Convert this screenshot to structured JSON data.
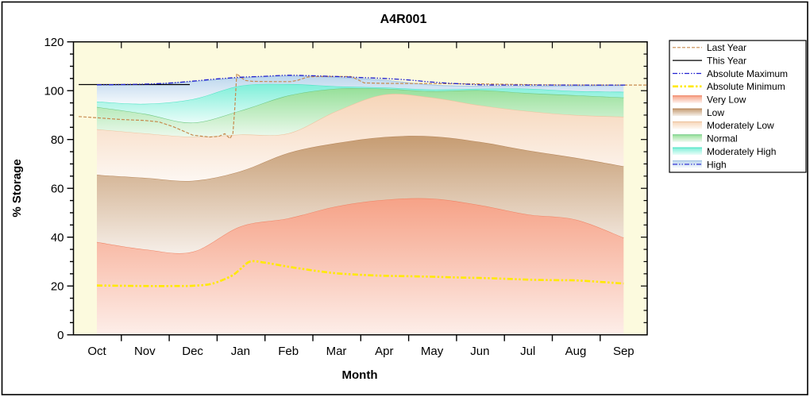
{
  "title": "A4R001",
  "axes": {
    "x": {
      "label": "Month",
      "categories": [
        "Oct",
        "Nov",
        "Dec",
        "Jan",
        "Feb",
        "Mar",
        "Apr",
        "May",
        "Jun",
        "Jul",
        "Aug",
        "Sep"
      ]
    },
    "y": {
      "label": "% Storage",
      "min": 0,
      "max": 120,
      "major_step": 20,
      "minor_step": 5,
      "ticks": [
        "0",
        "20",
        "40",
        "60",
        "80",
        "100",
        "120"
      ]
    }
  },
  "colors": {
    "figure_bg": "#FFFFFF",
    "border": "#000000",
    "plot_bg": "#FCFADE"
  },
  "legend": {
    "items": [
      {
        "label": "Last Year",
        "kind": "line",
        "color": "#C68A4E",
        "dash": "4 2",
        "width": 1.2
      },
      {
        "label": "This Year",
        "kind": "line",
        "color": "#000000",
        "dash": "",
        "width": 1.3
      },
      {
        "label": "Absolute Maximum",
        "kind": "line",
        "color": "#2020D0",
        "dash": "6 2 1.5 2 1.5 2",
        "width": 1.3
      },
      {
        "label": "Absolute Minimum",
        "kind": "line",
        "color": "#FFE900",
        "dash": "7 2.5 2.5 2.5 2.5 2.5",
        "width": 2.6
      },
      {
        "label": "Very Low",
        "kind": "band",
        "fill": "#F6A287",
        "stroke": "#EF8465"
      },
      {
        "label": "Low",
        "kind": "band",
        "fill": "#C69C72",
        "stroke": "#B8885C"
      },
      {
        "label": "Moderately Low",
        "kind": "band",
        "fill": "#F6D5B8",
        "stroke": "#EDC39E"
      },
      {
        "label": "Normal",
        "kind": "band",
        "fill": "#97E09A",
        "stroke": "#6FC983"
      },
      {
        "label": "Moderately High",
        "kind": "band",
        "fill": "#7EEFD9",
        "stroke": "#4FE3C4"
      },
      {
        "label": "High",
        "kind": "band-line",
        "fill": "#BCD6ED",
        "stroke": "#A8C6E4",
        "color": "#2020D0",
        "dash": "6 2 1.5 2 1.5 2",
        "width": 1.2
      }
    ]
  },
  "chart_data": {
    "type": "area",
    "title": "A4R001",
    "xlabel": "Month",
    "ylabel": "% Storage",
    "ylim": [
      0,
      120
    ],
    "grid": false,
    "legend_position": "outside-right",
    "categories": [
      "Oct",
      "Nov",
      "Dec",
      "Jan",
      "Feb",
      "Mar",
      "Apr",
      "May",
      "Jun",
      "Jul",
      "Aug",
      "Sep"
    ],
    "bands_note": "Stacked zone boundaries in % storage; each band fills from previous boundary (0 for first) up to its 'top' values at month centers Oct..Sep",
    "bands": [
      {
        "name": "Very Low",
        "fill": "#F6A287",
        "stroke": "#EF8465",
        "top": [
          38.0,
          35.0,
          34.0,
          44.4,
          47.7,
          52.6,
          55.3,
          55.8,
          53.1,
          49.3,
          47.2,
          39.8
        ]
      },
      {
        "name": "Low",
        "fill": "#C69C72",
        "stroke": "#B8885C",
        "top": [
          65.5,
          64.3,
          63.1,
          67.0,
          74.5,
          78.5,
          81.0,
          81.3,
          79.0,
          75.5,
          72.5,
          69.0
        ]
      },
      {
        "name": "Moderately Low",
        "fill": "#F6D5B8",
        "stroke": "#EDC39E",
        "top": [
          84.2,
          82.5,
          81.1,
          82.0,
          82.5,
          91.6,
          98.4,
          97.2,
          94.0,
          91.6,
          90.0,
          89.3
        ]
      },
      {
        "name": "Normal",
        "fill": "#97E09A",
        "stroke": "#6FC983",
        "top": [
          93.3,
          90.5,
          86.9,
          91.8,
          98.0,
          100.8,
          100.8,
          99.8,
          100.2,
          99.0,
          98.1,
          97.2
        ]
      },
      {
        "name": "Moderately High",
        "fill": "#7EEFD9",
        "stroke": "#4FE3C4",
        "top": [
          95.5,
          94.6,
          96.5,
          102.0,
          102.7,
          101.8,
          101.3,
          100.5,
          100.8,
          100.8,
          99.8,
          99.5
        ]
      },
      {
        "name": "High",
        "fill": "#BCD6ED",
        "stroke": "#A8C6E4",
        "top": [
          102.3,
          102.5,
          103.7,
          105.2,
          106.0,
          105.4,
          104.3,
          102.3,
          101.8,
          101.8,
          101.9,
          102.1
        ]
      }
    ],
    "lines_note": "points are [month_index, percent]; Oct=0 .. Sep=11; negative/fractional x = plot edge overhang",
    "lines": [
      {
        "name": "Absolute Minimum",
        "color": "#FFE900",
        "width": 2.6,
        "dash": "7 2.5 2.5 2.5 2.5 2.5",
        "smooth": true,
        "points": [
          [
            0,
            20.2
          ],
          [
            0.5,
            20.1
          ],
          [
            1,
            20.0
          ],
          [
            1.6,
            20.0
          ],
          [
            2,
            20.1
          ],
          [
            2.4,
            20.9
          ],
          [
            2.8,
            24.0
          ],
          [
            3,
            27.0
          ],
          [
            3.2,
            30.0
          ],
          [
            3.5,
            29.6
          ],
          [
            4,
            27.9
          ],
          [
            4.5,
            26.4
          ],
          [
            5,
            25.2
          ],
          [
            5.5,
            24.6
          ],
          [
            6,
            24.2
          ],
          [
            6.5,
            24.0
          ],
          [
            7,
            23.8
          ],
          [
            7.5,
            23.5
          ],
          [
            8,
            23.3
          ],
          [
            8.5,
            23.0
          ],
          [
            9,
            22.6
          ],
          [
            9.5,
            22.4
          ],
          [
            10,
            22.3
          ],
          [
            10.5,
            21.7
          ],
          [
            11,
            21.0
          ]
        ]
      },
      {
        "name": "Last Year",
        "color": "#C68A4E",
        "width": 1.2,
        "dash": "4 2",
        "smooth": false,
        "points": [
          [
            -0.38,
            89.4
          ],
          [
            0,
            88.9
          ],
          [
            0.5,
            88.2
          ],
          [
            1,
            87.8
          ],
          [
            1.3,
            87.2
          ],
          [
            1.6,
            85.2
          ],
          [
            2,
            81.8
          ],
          [
            2.35,
            81.0
          ],
          [
            2.55,
            81.3
          ],
          [
            2.67,
            82.4
          ],
          [
            2.78,
            80.4
          ],
          [
            2.84,
            82.5
          ],
          [
            2.88,
            93.0
          ],
          [
            2.92,
            107.0
          ],
          [
            3.0,
            105.6
          ],
          [
            3.1,
            104.2
          ],
          [
            3.25,
            103.8
          ],
          [
            3.7,
            103.7
          ],
          [
            4.05,
            103.7
          ],
          [
            4.2,
            104.3
          ],
          [
            4.4,
            105.6
          ],
          [
            4.6,
            105.8
          ],
          [
            5.3,
            105.8
          ],
          [
            5.42,
            104.8
          ],
          [
            5.58,
            103.2
          ],
          [
            6,
            103.0
          ],
          [
            7,
            102.9
          ],
          [
            8,
            102.8
          ],
          [
            8.6,
            102.6
          ],
          [
            9.3,
            102.4
          ],
          [
            10,
            102.3
          ],
          [
            11.49,
            102.3
          ]
        ]
      },
      {
        "name": "This Year",
        "color": "#000000",
        "width": 1.3,
        "dash": "",
        "smooth": false,
        "points": [
          [
            -0.38,
            102.5
          ],
          [
            1.94,
            102.5
          ]
        ]
      },
      {
        "name": "Absolute Maximum",
        "color": "#2020D0",
        "width": 1.3,
        "dash": "6 2 1.5 2 1.5 2",
        "smooth": true,
        "points": [
          [
            0,
            102.4
          ],
          [
            0.5,
            102.5
          ],
          [
            1,
            102.7
          ],
          [
            1.5,
            103.1
          ],
          [
            2,
            103.9
          ],
          [
            2.5,
            104.8
          ],
          [
            3,
            105.5
          ],
          [
            3.5,
            105.9
          ],
          [
            4,
            106.3
          ],
          [
            4.5,
            106.1
          ],
          [
            5,
            105.8
          ],
          [
            5.5,
            105.4
          ],
          [
            6,
            105.0
          ],
          [
            6.5,
            104.4
          ],
          [
            7,
            103.5
          ],
          [
            7.5,
            102.9
          ],
          [
            8,
            102.4
          ],
          [
            8.5,
            102.3
          ],
          [
            9,
            102.3
          ],
          [
            10,
            102.3
          ],
          [
            11.05,
            102.3
          ]
        ]
      }
    ]
  }
}
